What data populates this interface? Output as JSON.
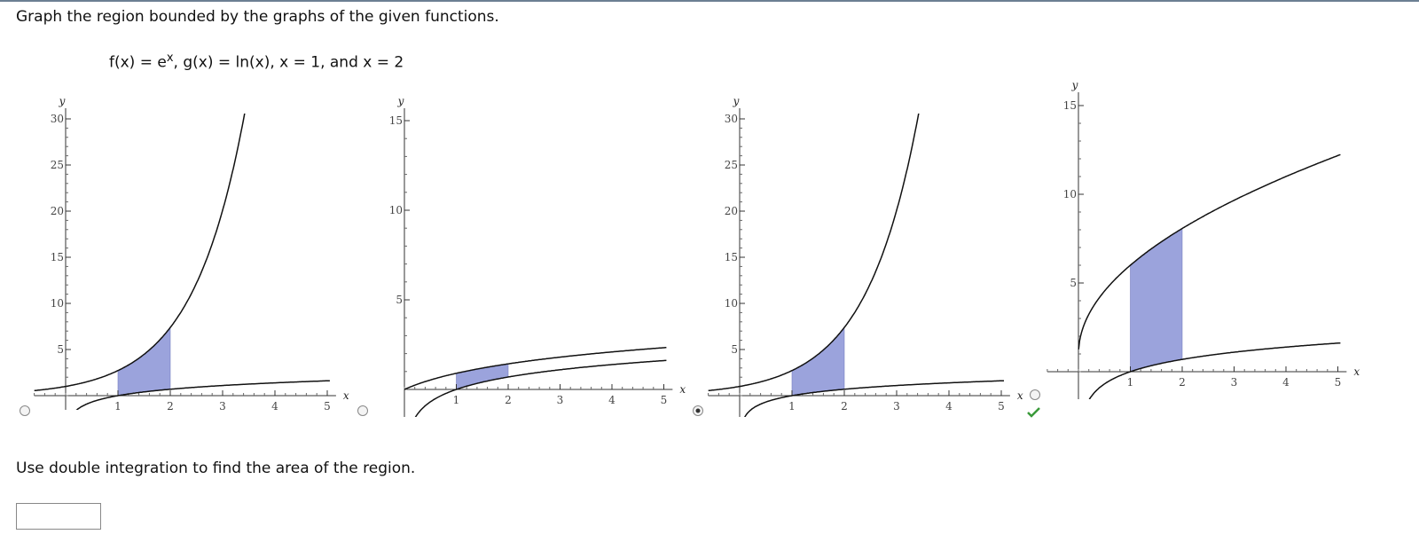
{
  "prompt": "Graph the region bounded by the graphs of the given functions.",
  "functions": {
    "lead": "f(x) = e",
    "power": "x",
    "rest": ", g(x) = ln(x), x = 1, and x = 2"
  },
  "options": [
    {
      "x_label": "x",
      "y_label": "y",
      "x_ticks": [
        1,
        2,
        3,
        4,
        5
      ],
      "y_ticks": [
        5,
        10,
        15,
        20,
        25,
        30
      ],
      "selected": false
    },
    {
      "x_label": "x",
      "y_label": "y",
      "x_ticks": [
        1,
        2,
        3,
        4,
        5
      ],
      "y_ticks": [
        5,
        10,
        15
      ],
      "selected": false
    },
    {
      "x_label": "x",
      "y_label": "y",
      "x_ticks": [
        1,
        2,
        3,
        4,
        5
      ],
      "y_ticks": [
        5,
        10,
        15,
        20,
        25,
        30
      ],
      "selected": true
    },
    {
      "x_label": "x",
      "y_label": "y",
      "x_ticks": [
        1,
        2,
        3,
        4,
        5
      ],
      "y_ticks": [
        5,
        10,
        15
      ],
      "selected": false
    }
  ],
  "question": "Use double integration to find the area of the region."
}
